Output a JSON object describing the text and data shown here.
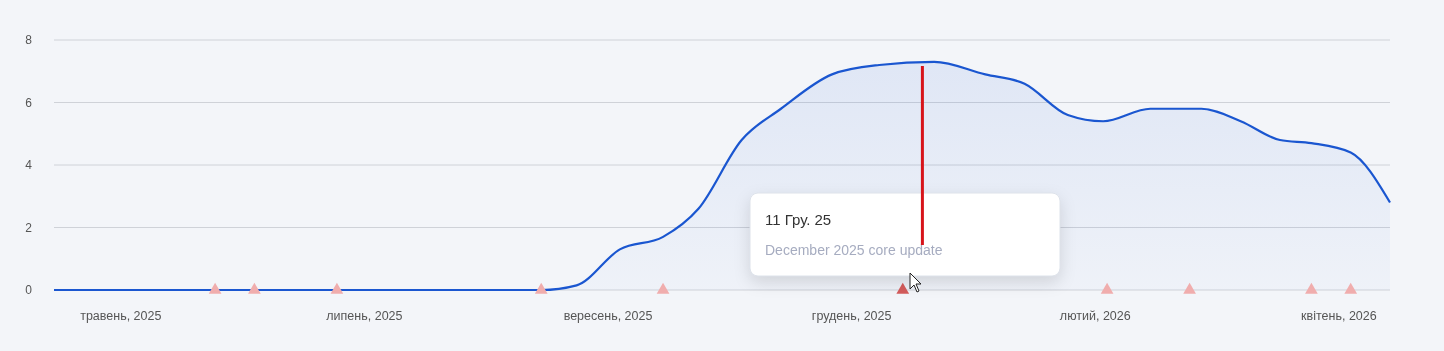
{
  "chart_data": {
    "type": "area",
    "grid": "y",
    "x": [
      "2025-05-12",
      "2025-06-10",
      "2025-07-10",
      "2025-08-10",
      "2025-09-13",
      "2025-09-22",
      "2025-10-03",
      "2025-10-14",
      "2025-10-23",
      "2025-11-03",
      "2025-11-13",
      "2025-11-26",
      "2025-12-08",
      "2025-12-22",
      "2026-01-04",
      "2026-01-14",
      "2026-01-25",
      "2026-02-03",
      "2026-02-15",
      "2026-02-28",
      "2026-03-10",
      "2026-03-20",
      "2026-03-28",
      "2026-04-07",
      "2026-04-17"
    ],
    "series": [
      {
        "color": "#1a56d0",
        "values": [
          0,
          0,
          0,
          0,
          0,
          0.15,
          1.3,
          1.7,
          2.6,
          4.8,
          5.8,
          6.9,
          7.2,
          7.3,
          6.9,
          6.6,
          5.6,
          5.4,
          5.8,
          5.8,
          5.4,
          4.8,
          4.7,
          4.4,
          2.8
        ],
        "marker": "none"
      },
      {
        "type": "scatter",
        "marker": "triangle",
        "x": [
          "2025-06-22",
          "2025-07-02",
          "2025-07-23",
          "2025-09-13",
          "2025-10-14",
          "2025-12-14",
          "2026-02-04",
          "2026-02-25",
          "2026-03-28",
          "2026-04-07"
        ],
        "values": [
          0,
          0,
          0,
          0,
          0,
          0,
          0,
          0,
          0,
          0
        ],
        "colors": [
          "#f0adad",
          "#f0adad",
          "#f0adad",
          "#f0adad",
          "#f0adad",
          "#d45c5c",
          "#f0adad",
          "#f0adad",
          "#f0adad",
          "#f0adad"
        ]
      }
    ],
    "xlim": [
      "2025-05-12",
      "2026-04-17"
    ],
    "xticks": [
      {
        "value": "2025-05-29",
        "label": "травень, 2025"
      },
      {
        "value": "2025-07-30",
        "label": "липень, 2025"
      },
      {
        "value": "2025-09-30",
        "label": "вересень, 2025"
      },
      {
        "value": "2025-12-01",
        "label": "грудень, 2025"
      },
      {
        "value": "2026-02-01",
        "label": "лютий, 2026"
      },
      {
        "value": "2026-04-04",
        "label": "квітень, 2026"
      }
    ],
    "ylim": [
      0,
      8
    ],
    "yticks": [
      0,
      2,
      4,
      6,
      8
    ],
    "annotations": [
      "11 Гру. 25",
      "December 2025 core update"
    ],
    "ref_lines": [
      {
        "axis": "x",
        "value": "2025-12-19",
        "color": "#d7141a"
      }
    ]
  }
}
